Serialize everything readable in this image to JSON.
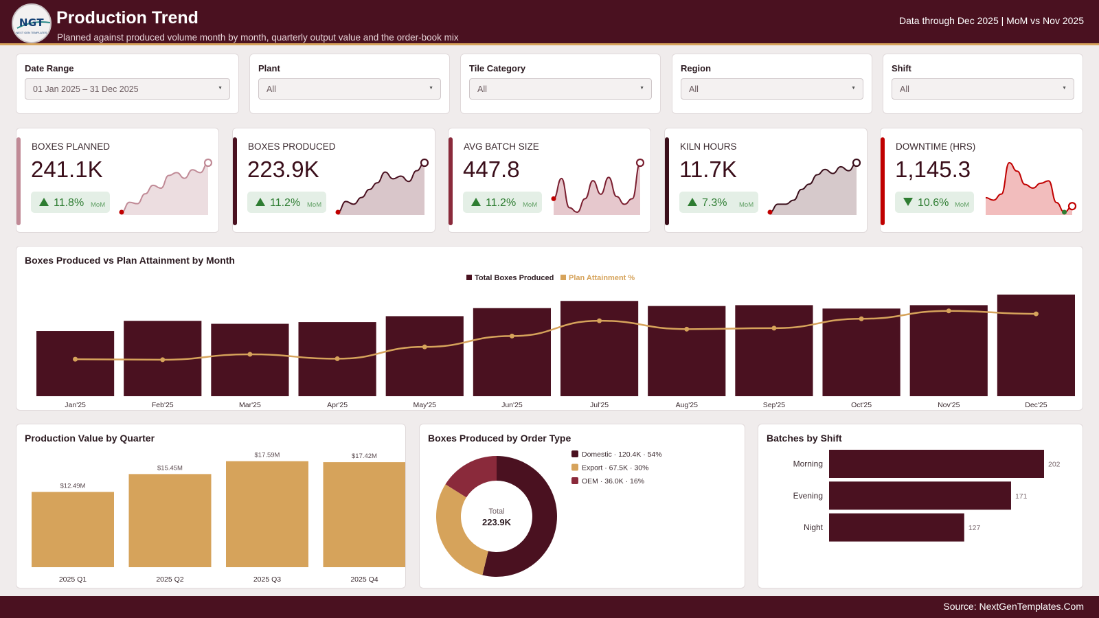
{
  "header": {
    "logo_text": "NGT",
    "logo_subtext": "NEXT GEN TEMPLATES",
    "title": "Production Trend",
    "subtitle": "Planned against produced volume month by month, quarterly output value and the order-book mix",
    "data_through": "Data through Dec 2025 | MoM vs Nov 2025"
  },
  "colors": {
    "primary": "#4a1120",
    "accent": "#d6a35b",
    "positive": "#2e7d32",
    "negative": "#c62828",
    "oem": "#8a2a3b",
    "rose": "#c08a96"
  },
  "filters": [
    {
      "label": "Date Range",
      "value": "01 Jan 2025 – 31 Dec 2025"
    },
    {
      "label": "Plant",
      "value": "All"
    },
    {
      "label": "Tile Category",
      "value": "All"
    },
    {
      "label": "Region",
      "value": "All"
    },
    {
      "label": "Shift",
      "value": "All"
    }
  ],
  "kpis": [
    {
      "label": "BOXES PLANNED",
      "value": "241.1K",
      "delta": "11.8%",
      "direction": "up",
      "mom": "MoM",
      "bar_color": "#c08a96",
      "spark_color": "#c08a96",
      "spark_fill": "#ecdde0",
      "spark": [
        3,
        10,
        9,
        16,
        22,
        20,
        29,
        31,
        27,
        33,
        31,
        38
      ]
    },
    {
      "label": "BOXES PRODUCED",
      "value": "223.9K",
      "delta": "11.2%",
      "direction": "up",
      "mom": "MoM",
      "bar_color": "#4a1120",
      "spark_color": "#4a1120",
      "spark_fill": "#d9c6ca",
      "spark": [
        3,
        11,
        9,
        14,
        20,
        25,
        33,
        28,
        30,
        26,
        34,
        40
      ]
    },
    {
      "label": "AVG BATCH SIZE",
      "value": "447.8",
      "delta": "11.2%",
      "direction": "up",
      "mom": "MoM",
      "bar_color": "#8a2a3b",
      "spark_color": "#7a1f30",
      "spark_fill": "#e6c8cd",
      "spark": [
        14,
        32,
        6,
        2,
        14,
        30,
        18,
        33,
        16,
        9,
        14,
        46
      ]
    },
    {
      "label": "KILN HOURS",
      "value": "11.7K",
      "delta": "7.3%",
      "direction": "up",
      "mom": "MoM",
      "bar_color": "#3a0e1a",
      "spark_color": "#3a0e1a",
      "spark_fill": "#d6c9cb",
      "spark": [
        3,
        9,
        9,
        12,
        20,
        24,
        31,
        35,
        32,
        37,
        34,
        40
      ]
    },
    {
      "label": "DOWNTIME (HRS)",
      "value": "1,145.3",
      "delta": "10.6%",
      "direction": "down",
      "mom": "MoM",
      "bar_color": "#c00000",
      "spark_color": "#c00000",
      "spark_fill": "#f2bdbd",
      "spark": [
        14,
        12,
        17,
        43,
        36,
        25,
        22,
        26,
        28,
        10,
        2,
        7
      ]
    }
  ],
  "main_chart": {
    "title": "Boxes Produced vs Plan Attainment by Month",
    "legend": [
      "Total Boxes Produced",
      "Plan Attainment %"
    ]
  },
  "quarter_chart": {
    "title": "Production Value by Quarter"
  },
  "donut_chart": {
    "title": "Boxes Produced by Order Type",
    "center_label": "Total",
    "center_value": "223.9K"
  },
  "shift_chart": {
    "title": "Batches by Shift"
  },
  "footer": {
    "source": "Source: NextGenTemplates.Com"
  },
  "chart_data": [
    {
      "type": "bar",
      "title": "Boxes Produced vs Plan Attainment by Month",
      "categories": [
        "Jan'25",
        "Feb'25",
        "Mar'25",
        "Apr'25",
        "May'25",
        "Jun'25",
        "Jul'25",
        "Aug'25",
        "Sep'25",
        "Oct'25",
        "Nov'25",
        "Dec'25"
      ],
      "series": [
        {
          "name": "Total Boxes Produced",
          "type": "bar",
          "values": [
            15.4,
            17.8,
            17.1,
            17.5,
            18.9,
            20.8,
            22.5,
            21.3,
            21.5,
            20.7,
            21.5,
            24.0
          ]
        },
        {
          "name": "Plan Attainment %",
          "type": "line",
          "values": [
            87.5,
            87.4,
            88.5,
            87.6,
            90.0,
            92.2,
            95.3,
            93.6,
            93.8,
            95.7,
            97.3,
            96.7
          ]
        }
      ],
      "legend": "top-center",
      "grid": false
    },
    {
      "type": "bar",
      "title": "Production Value by Quarter",
      "categories": [
        "2025 Q1",
        "2025 Q2",
        "2025 Q3",
        "2025 Q4"
      ],
      "values": [
        12.49,
        15.45,
        17.59,
        17.42
      ],
      "labels": [
        "$12.49M",
        "$15.45M",
        "$17.59M",
        "$17.42M"
      ],
      "ylim": [
        0,
        18
      ]
    },
    {
      "type": "pie",
      "title": "Boxes Produced by Order Type",
      "categories": [
        "Domestic",
        "Export",
        "OEM"
      ],
      "values": [
        120.4,
        67.5,
        36.0
      ],
      "labels": [
        "Domestic · 120.4K · 54%",
        "Export · 67.5K · 30%",
        "OEM · 36.0K · 16%"
      ],
      "colors": [
        "#4a1120",
        "#d6a35b",
        "#8a2a3b"
      ],
      "legend": "right"
    },
    {
      "type": "bar",
      "orientation": "horizontal",
      "title": "Batches by Shift",
      "categories": [
        "Morning",
        "Evening",
        "Night"
      ],
      "values": [
        202,
        171,
        127
      ]
    }
  ]
}
